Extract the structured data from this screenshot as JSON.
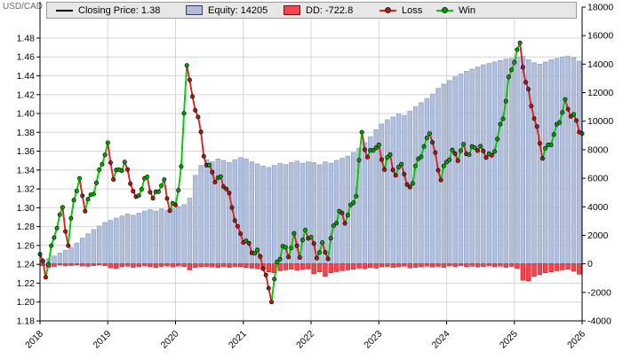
{
  "header": {
    "symbol": "USD/CAD"
  },
  "legend": {
    "closing_price_label": "Closing Price: 1.38",
    "equity_label": "Equity: 14205",
    "dd_label": "DD: -722.8",
    "loss_label": "Loss",
    "win_label": "Win"
  },
  "colors": {
    "grid": "#d4d4d4",
    "axis": "#000000",
    "price_line": "#000000",
    "equity_fill": "#b3c0dc",
    "equity_stroke": "#94a4c6",
    "dd_fill": "#f7434e",
    "dd_stroke": "#c92f36",
    "win": "#00cc00",
    "win_dark": "#005f00",
    "loss": "#e02020",
    "loss_dark": "#6e0000",
    "legend_bg": "#e7e7e7",
    "symbol_text": "#6b6b6b"
  },
  "chart_data": {
    "type": "mixed",
    "title": "USD/CAD backtest: closing price with win/loss trade markers, equity and drawdown bars",
    "price_axis": {
      "side": "left",
      "min": 1.18,
      "max": 1.48,
      "step": 0.02
    },
    "equity_axis": {
      "side": "right",
      "min": -4000,
      "max": 18000,
      "step": 2000
    },
    "x_axis": {
      "start_year": 2018,
      "end_year": 2026
    },
    "price_ticks": [
      "1.48",
      "1.46",
      "1.44",
      "1.42",
      "1.40",
      "1.38",
      "1.36",
      "1.34",
      "1.32",
      "1.30",
      "1.28",
      "1.26",
      "1.24",
      "1.22",
      "1.20",
      "1.18"
    ],
    "equity_ticks": [
      "18000",
      "16000",
      "14000",
      "12000",
      "10000",
      "8000",
      "6000",
      "4000",
      "2000",
      "0",
      "-2000",
      "-4000"
    ],
    "year_ticks": [
      "2018",
      "2019",
      "2020",
      "2021",
      "2022",
      "2023",
      "2024",
      "2025",
      "2026"
    ],
    "series": [
      {
        "name": "Closing Price",
        "type": "line",
        "final_value": 1.38
      },
      {
        "name": "Equity",
        "type": "bar",
        "final_value": 14205
      },
      {
        "name": "DD",
        "type": "bar",
        "final_value": -722.8
      },
      {
        "name": "Loss",
        "type": "marker"
      },
      {
        "name": "Win",
        "type": "marker"
      }
    ],
    "price_monthly": [
      1.248,
      1.228,
      1.258,
      1.285,
      1.3,
      1.258,
      1.308,
      1.325,
      1.3,
      1.315,
      1.328,
      1.35,
      1.363,
      1.33,
      1.338,
      1.348,
      1.332,
      1.31,
      1.322,
      1.33,
      1.305,
      1.32,
      1.328,
      1.302,
      1.305,
      1.34,
      1.452,
      1.412,
      1.398,
      1.358,
      1.345,
      1.332,
      1.328,
      1.318,
      1.3,
      1.278,
      1.27,
      1.262,
      1.252,
      1.248,
      1.222,
      1.203,
      1.242,
      1.262,
      1.252,
      1.268,
      1.248,
      1.272,
      1.268,
      1.252,
      1.262,
      1.25,
      1.278,
      1.292,
      1.285,
      1.3,
      1.318,
      1.382,
      1.352,
      1.362,
      1.36,
      1.342,
      1.358,
      1.335,
      1.352,
      1.32,
      1.325,
      1.35,
      1.362,
      1.385,
      1.358,
      1.332,
      1.348,
      1.355,
      1.352,
      1.365,
      1.36,
      1.368,
      1.362,
      1.355,
      1.35,
      1.372,
      1.398,
      1.438,
      1.46,
      1.472,
      1.43,
      1.408,
      1.382,
      1.358,
      1.368,
      1.378,
      1.392,
      1.408,
      1.398,
      1.392,
      1.38
    ],
    "equity_monthly": [
      150,
      350,
      550,
      750,
      950,
      1150,
      1450,
      1800,
      2100,
      2400,
      2650,
      2900,
      3050,
      3200,
      3350,
      3500,
      3400,
      3550,
      3700,
      3800,
      3700,
      3850,
      3750,
      3900,
      4000,
      4150,
      4600,
      6200,
      6900,
      7300,
      7150,
      7350,
      7250,
      7100,
      7300,
      7450,
      7350,
      7150,
      7000,
      6850,
      6750,
      6900,
      7050,
      6950,
      7100,
      7200,
      7050,
      7150,
      7100,
      6950,
      7150,
      7050,
      7250,
      7400,
      7550,
      7800,
      8100,
      8500,
      8900,
      9400,
      9800,
      10100,
      10300,
      10500,
      10400,
      10700,
      11000,
      11300,
      11600,
      11900,
      12300,
      12600,
      12850,
      13100,
      13300,
      13500,
      13650,
      13800,
      13950,
      14050,
      14150,
      14250,
      14350,
      14400,
      14500,
      14550,
      14300,
      14100,
      14000,
      14150,
      14300,
      14400,
      14500,
      14550,
      14450,
      14205
    ],
    "dd_monthly": [
      -120,
      -260,
      -180,
      -90,
      -140,
      -110,
      -80,
      -150,
      -170,
      -120,
      -90,
      -130,
      -280,
      -320,
      -200,
      -160,
      -240,
      -180,
      -140,
      -200,
      -260,
      -180,
      -150,
      -220,
      -150,
      -180,
      -420,
      -260,
      -200,
      -180,
      -220,
      -260,
      -200,
      -240,
      -180,
      -200,
      -260,
      -300,
      -340,
      -380,
      -560,
      -620,
      -480,
      -420,
      -380,
      -440,
      -400,
      -360,
      -700,
      -560,
      -880,
      -620,
      -540,
      -480,
      -420,
      -380,
      -300,
      -340,
      -260,
      -300,
      -220,
      -180,
      -240,
      -200,
      -160,
      -280,
      -240,
      -200,
      -160,
      -220,
      -180,
      -240,
      -140,
      -180,
      -120,
      -200,
      -160,
      -220,
      -180,
      -140,
      -200,
      -160,
      -240,
      -180,
      -320,
      -1150,
      -1190,
      -880,
      -760,
      -620,
      -560,
      -480,
      -420,
      -380,
      -520,
      -722.8
    ]
  }
}
